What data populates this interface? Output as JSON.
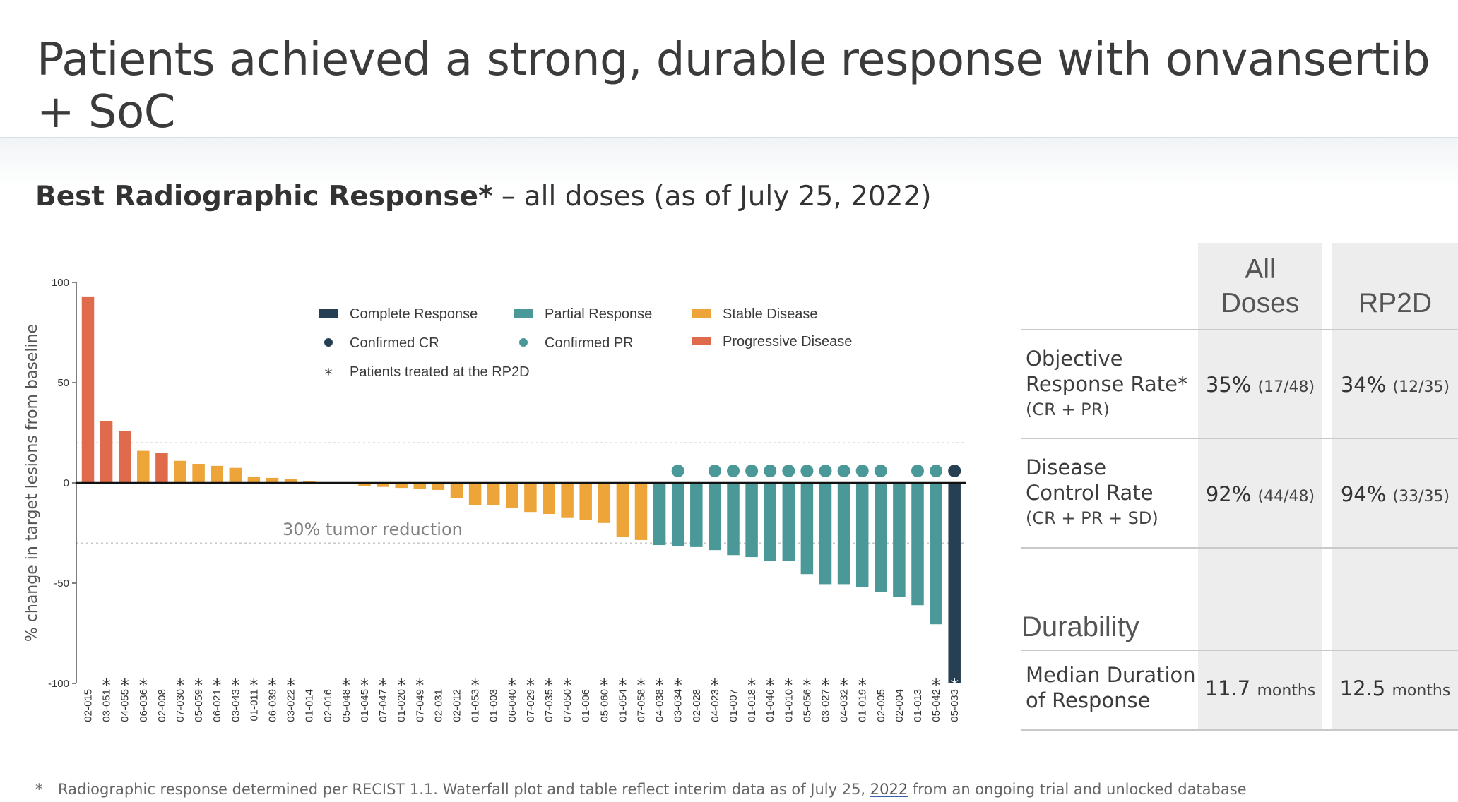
{
  "page": {
    "title": "Patients achieved a strong, durable response with onvansertib + SoC",
    "subtitle_bold": "Best Radiographic Response*",
    "subtitle_rest": " – all doses (as of July 25, 2022)",
    "footnote_star": "*",
    "footnote_text_a": "Radiographic response determined per RECIST 1.1. Waterfall plot and table reflect interim data as of July 25, ",
    "footnote_text_u": "2022",
    "footnote_text_b": " from an ongoing trial and unlocked database"
  },
  "table": {
    "col_all": "All\nDoses",
    "col_rp2d": "RP2D",
    "orr_label": [
      "Objective",
      "Response Rate*"
    ],
    "orr_sub": "(CR + PR)",
    "orr_all_pct": "35%",
    "orr_all_n": "(17/48)",
    "orr_rp2d_pct": "34%",
    "orr_rp2d_n": "(12/35)",
    "dcr_label": [
      "Disease",
      "Control Rate"
    ],
    "dcr_sub": "(CR + PR + SD)",
    "dcr_all_pct": "92%",
    "dcr_all_n": "(44/48)",
    "dcr_rp2d_pct": "94%",
    "dcr_rp2d_n": "(33/35)",
    "durability_header": "Durability",
    "mdr_label": [
      "Median Duration",
      "of Response"
    ],
    "mdr_all_val": "11.7",
    "mdr_all_unit": "months",
    "mdr_rp2d_val": "12.5",
    "mdr_rp2d_unit": "months"
  },
  "chart_data": {
    "type": "bar",
    "ylabel": "% change in target lesions from baseline",
    "ylim": [
      -100,
      100
    ],
    "yticks": [
      100,
      50,
      0,
      -50,
      -100
    ],
    "reference_line_label": "30% tumor reduction",
    "reference_lines": [
      20,
      -30
    ],
    "colors": {
      "CR": "#263f52",
      "PR": "#4a9898",
      "SD": "#eda53a",
      "PD": "#e06b4c"
    },
    "legend": [
      {
        "key": "CR",
        "label": "Complete  Response",
        "marker": "square"
      },
      {
        "key": "PR",
        "label": "Partial Response",
        "marker": "square"
      },
      {
        "key": "SD",
        "label": "Stable Disease",
        "marker": "square"
      },
      {
        "key": "CR",
        "label": "Confirmed CR",
        "marker": "dot"
      },
      {
        "key": "PR",
        "label": "Confirmed PR",
        "marker": "dot"
      },
      {
        "key": "PD",
        "label": "Progressive Disease",
        "marker": "square"
      },
      {
        "key": "none",
        "label": "Patients treated at the RP2D",
        "marker": "asterisk"
      }
    ],
    "bars": [
      {
        "patient": "02-015",
        "value": 93,
        "category": "PD",
        "rp2d": false,
        "confirmed": false
      },
      {
        "patient": "03-051",
        "value": 31,
        "category": "PD",
        "rp2d": true,
        "confirmed": false
      },
      {
        "patient": "04-055",
        "value": 26,
        "category": "PD",
        "rp2d": true,
        "confirmed": false
      },
      {
        "patient": "06-036",
        "value": 16,
        "category": "SD",
        "rp2d": true,
        "confirmed": false
      },
      {
        "patient": "02-008",
        "value": 15,
        "category": "PD",
        "rp2d": false,
        "confirmed": false
      },
      {
        "patient": "07-030",
        "value": 11,
        "category": "SD",
        "rp2d": true,
        "confirmed": false
      },
      {
        "patient": "05-059",
        "value": 9.5,
        "category": "SD",
        "rp2d": true,
        "confirmed": false
      },
      {
        "patient": "06-021",
        "value": 8.5,
        "category": "SD",
        "rp2d": true,
        "confirmed": false
      },
      {
        "patient": "03-043",
        "value": 7.5,
        "category": "SD",
        "rp2d": true,
        "confirmed": false
      },
      {
        "patient": "01-011",
        "value": 3,
        "category": "SD",
        "rp2d": true,
        "confirmed": false
      },
      {
        "patient": "06-039",
        "value": 2.5,
        "category": "SD",
        "rp2d": true,
        "confirmed": false
      },
      {
        "patient": "03-022",
        "value": 2,
        "category": "SD",
        "rp2d": true,
        "confirmed": false
      },
      {
        "patient": "01-014",
        "value": 1,
        "category": "SD",
        "rp2d": false,
        "confirmed": false
      },
      {
        "patient": "02-016",
        "value": 0,
        "category": "SD",
        "rp2d": false,
        "confirmed": false
      },
      {
        "patient": "05-048",
        "value": 0,
        "category": "SD",
        "rp2d": true,
        "confirmed": false
      },
      {
        "patient": "01-045",
        "value": -1.5,
        "category": "SD",
        "rp2d": true,
        "confirmed": false
      },
      {
        "patient": "07-047",
        "value": -2,
        "category": "SD",
        "rp2d": true,
        "confirmed": false
      },
      {
        "patient": "01-020",
        "value": -2.5,
        "category": "SD",
        "rp2d": true,
        "confirmed": false
      },
      {
        "patient": "07-049",
        "value": -3,
        "category": "SD",
        "rp2d": true,
        "confirmed": false
      },
      {
        "patient": "02-031",
        "value": -3.5,
        "category": "SD",
        "rp2d": false,
        "confirmed": false
      },
      {
        "patient": "02-012",
        "value": -7.5,
        "category": "SD",
        "rp2d": false,
        "confirmed": false
      },
      {
        "patient": "01-053",
        "value": -11,
        "category": "SD",
        "rp2d": true,
        "confirmed": false
      },
      {
        "patient": "01-003",
        "value": -11,
        "category": "SD",
        "rp2d": false,
        "confirmed": false
      },
      {
        "patient": "06-040",
        "value": -12.5,
        "category": "SD",
        "rp2d": true,
        "confirmed": false
      },
      {
        "patient": "07-029",
        "value": -14.5,
        "category": "SD",
        "rp2d": true,
        "confirmed": false
      },
      {
        "patient": "07-035",
        "value": -15.5,
        "category": "SD",
        "rp2d": true,
        "confirmed": false
      },
      {
        "patient": "07-050",
        "value": -17.5,
        "category": "SD",
        "rp2d": true,
        "confirmed": false
      },
      {
        "patient": "01-006",
        "value": -18.5,
        "category": "SD",
        "rp2d": false,
        "confirmed": false
      },
      {
        "patient": "05-060",
        "value": -20,
        "category": "SD",
        "rp2d": true,
        "confirmed": false
      },
      {
        "patient": "01-054",
        "value": -27,
        "category": "SD",
        "rp2d": true,
        "confirmed": false
      },
      {
        "patient": "07-058",
        "value": -28.5,
        "category": "SD",
        "rp2d": true,
        "confirmed": false
      },
      {
        "patient": "04-038",
        "value": -31,
        "category": "PR",
        "rp2d": true,
        "confirmed": false
      },
      {
        "patient": "03-034",
        "value": -31.5,
        "category": "PR",
        "rp2d": true,
        "confirmed": true
      },
      {
        "patient": "02-028",
        "value": -32,
        "category": "PR",
        "rp2d": false,
        "confirmed": false
      },
      {
        "patient": "04-023",
        "value": -33.5,
        "category": "PR",
        "rp2d": true,
        "confirmed": true
      },
      {
        "patient": "01-007",
        "value": -36,
        "category": "PR",
        "rp2d": false,
        "confirmed": true
      },
      {
        "patient": "01-018",
        "value": -37,
        "category": "PR",
        "rp2d": true,
        "confirmed": true
      },
      {
        "patient": "01-046",
        "value": -39,
        "category": "PR",
        "rp2d": true,
        "confirmed": true
      },
      {
        "patient": "01-010",
        "value": -39,
        "category": "PR",
        "rp2d": true,
        "confirmed": true
      },
      {
        "patient": "05-056",
        "value": -45.5,
        "category": "PR",
        "rp2d": true,
        "confirmed": true
      },
      {
        "patient": "03-027",
        "value": -50.5,
        "category": "PR",
        "rp2d": true,
        "confirmed": true
      },
      {
        "patient": "04-032",
        "value": -50.5,
        "category": "PR",
        "rp2d": true,
        "confirmed": true
      },
      {
        "patient": "01-019",
        "value": -52,
        "category": "PR",
        "rp2d": true,
        "confirmed": true
      },
      {
        "patient": "02-005",
        "value": -54.5,
        "category": "PR",
        "rp2d": false,
        "confirmed": true
      },
      {
        "patient": "02-004",
        "value": -57,
        "category": "PR",
        "rp2d": false,
        "confirmed": false
      },
      {
        "patient": "01-013",
        "value": -61,
        "category": "PR",
        "rp2d": false,
        "confirmed": true
      },
      {
        "patient": "05-042",
        "value": -70.5,
        "category": "PR",
        "rp2d": true,
        "confirmed": true
      },
      {
        "patient": "05-033",
        "value": -100,
        "category": "CR",
        "rp2d": true,
        "confirmed": true
      }
    ]
  }
}
